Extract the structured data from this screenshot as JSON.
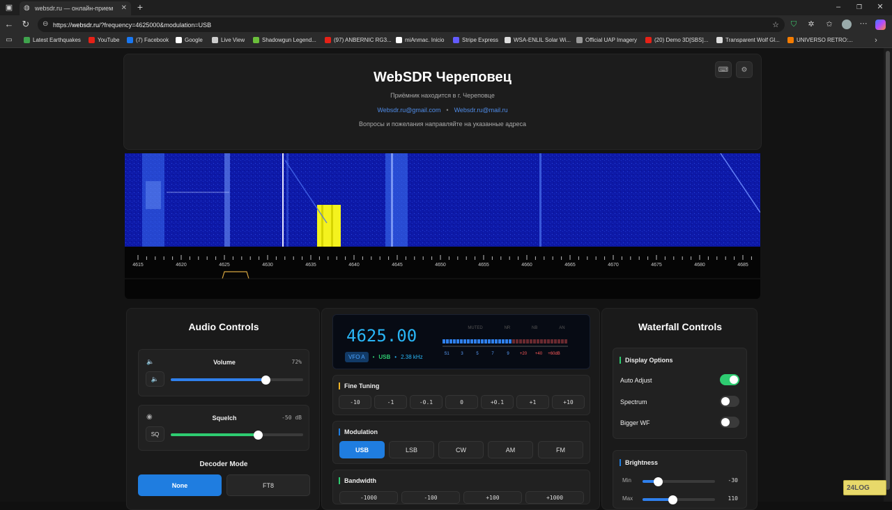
{
  "browser": {
    "tab_title": "websdr.ru — онлайн-прием",
    "url_prefix": "https://",
    "url_host": "websdr.ru",
    "url_rest": "/?frequency=4625000&modulation=USB",
    "bookmarks": [
      {
        "label": "Latest Earthquakes",
        "color": "#3fa34d"
      },
      {
        "label": "YouTube",
        "color": "#e62117"
      },
      {
        "label": "(7) Facebook",
        "color": "#1877f2"
      },
      {
        "label": "Google",
        "color": "#ffffff"
      },
      {
        "label": "Live View",
        "color": "#cccccc"
      },
      {
        "label": "Shadowgun Legend...",
        "color": "#6bbf3b"
      },
      {
        "label": "(97) ANBERNIC RG3...",
        "color": "#e62117"
      },
      {
        "label": "miAnmac. Inicio",
        "color": "#ffffff"
      },
      {
        "label": "Stripe Express",
        "color": "#635bff"
      },
      {
        "label": "WSA-ENLIL Solar Wi...",
        "color": "#dddddd"
      },
      {
        "label": "Official UAP Imagery",
        "color": "#999999"
      },
      {
        "label": "(20) Demo 3D[SBS]...",
        "color": "#e62117"
      },
      {
        "label": "Transparent Wolf Gl...",
        "color": "#dddddd"
      },
      {
        "label": "UNIVERSO RETRO:...",
        "color": "#f57c00"
      }
    ]
  },
  "header": {
    "title": "WebSDR Череповец",
    "subtitle": "Приёмник находится в г. Череповце",
    "email1": "Websdr.ru@gmail.com",
    "separator": "•",
    "email2": "Websdr.ru@mail.ru",
    "note": "Вопросы и пожелания направляйте на указанные адреса"
  },
  "scale": {
    "labels": [
      "4615",
      "4620",
      "4625",
      "4630",
      "4635",
      "4640",
      "4645",
      "4650",
      "4655",
      "4660",
      "4665",
      "4670",
      "4675",
      "4680",
      "4685"
    ]
  },
  "audio": {
    "title": "Audio Controls",
    "volume_label": "Volume",
    "volume_value": "72%",
    "volume_level": 0.72,
    "squelch_label": "Squelch",
    "squelch_value": "-50 dB",
    "squelch_level": 0.66,
    "sq_button": "SQ",
    "decoder_title": "Decoder Mode",
    "decoder_none": "None",
    "decoder_ft8": "FT8"
  },
  "display": {
    "frequency": "4625.00",
    "vfo": "VFO A",
    "mode": "USB",
    "bandwidth": "2.38 kHz",
    "flags": [
      "MUTED",
      "NR",
      "NB",
      "AN"
    ],
    "smeter_labels": [
      "S1",
      "3",
      "5",
      "7",
      "9",
      "+20",
      "+40",
      "+60dB"
    ],
    "smeter_level": 0.55
  },
  "fine_tuning": {
    "title": "Fine Tuning",
    "steps": [
      "-10",
      "-1",
      "-0.1",
      "0",
      "+0.1",
      "+1",
      "+10"
    ]
  },
  "modulation": {
    "title": "Modulation",
    "modes": [
      "USB",
      "LSB",
      "CW",
      "AM",
      "FM"
    ],
    "active": "USB"
  },
  "bandwidth_section": {
    "title": "Bandwidth",
    "buttons": [
      "-1000",
      "-100",
      "+100",
      "+1000"
    ]
  },
  "waterfall": {
    "title": "Waterfall Controls",
    "display_title": "Display Options",
    "auto_adjust": "Auto Adjust",
    "auto_adjust_on": true,
    "spectrum": "Spectrum",
    "spectrum_on": false,
    "bigger_wf": "Bigger WF",
    "bigger_wf_on": false,
    "brightness_title": "Brightness",
    "min_label": "Min",
    "min_value": "-30",
    "min_level": 0.22,
    "max_label": "Max",
    "max_value": "110",
    "max_level": 0.42
  },
  "colors": {
    "accent_blue": "#1f7de0",
    "volume_fill": "#2f80ed",
    "squelch_fill": "#2ecc71",
    "freq_cyan": "#29b6f6",
    "waterfall_bg": "#0d19a8",
    "signal_yellow": "#f4f21e"
  },
  "logo": {
    "text": "24LOG"
  }
}
